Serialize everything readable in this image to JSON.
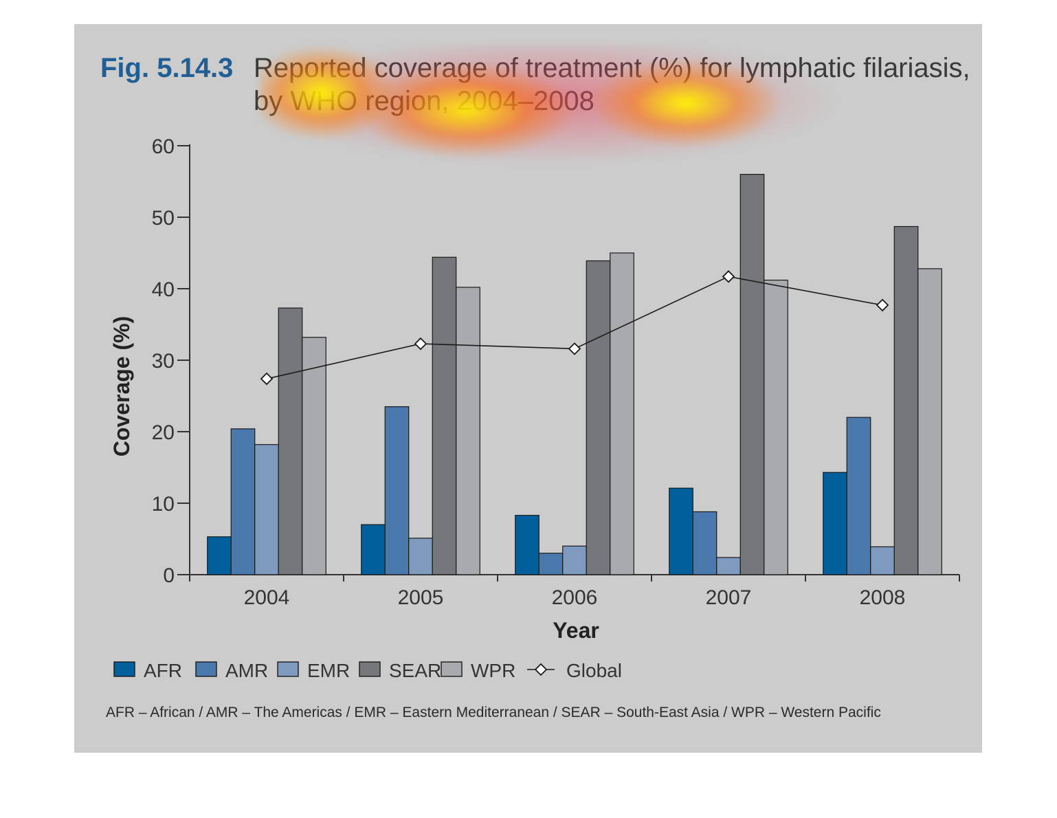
{
  "figure": {
    "number": "Fig. 5.14.3",
    "title_line1": "Reported coverage of treatment (%) for lymphatic filariasis,",
    "title_line2": "by WHO region, 2004–2008",
    "footnote": "AFR – African / AMR – The Americas / EMR – Eastern Mediterranean / SEAR – South-East Asia / WPR – Western Pacific"
  },
  "chart_data": {
    "type": "bar",
    "xlabel": "Year",
    "ylabel": "Coverage (%)",
    "ylim": [
      0,
      60
    ],
    "yticks": [
      0,
      10,
      20,
      30,
      40,
      50,
      60
    ],
    "categories": [
      "2004",
      "2005",
      "2006",
      "2007",
      "2008"
    ],
    "series": [
      {
        "name": "AFR",
        "color": "#00609c",
        "values": [
          5.3,
          7.0,
          8.3,
          12.1,
          14.3
        ]
      },
      {
        "name": "AMR",
        "color": "#4a79ae",
        "values": [
          20.4,
          23.5,
          3.0,
          8.8,
          22.0
        ]
      },
      {
        "name": "EMR",
        "color": "#7f9abe",
        "values": [
          18.2,
          5.1,
          4.0,
          2.4,
          3.9
        ]
      },
      {
        "name": "SEAR",
        "color": "#76777b",
        "values": [
          37.3,
          44.4,
          43.9,
          56.0,
          48.7
        ]
      },
      {
        "name": "WPR",
        "color": "#a9aaad",
        "values": [
          33.2,
          40.2,
          45.0,
          41.2,
          42.8
        ]
      }
    ],
    "line_series": {
      "name": "Global",
      "type": "line",
      "marker": "diamond",
      "color": "#1a1a1a",
      "values": [
        27.4,
        32.3,
        31.6,
        41.7,
        37.7
      ]
    },
    "legend_position": "bottom-left",
    "grid": false
  }
}
